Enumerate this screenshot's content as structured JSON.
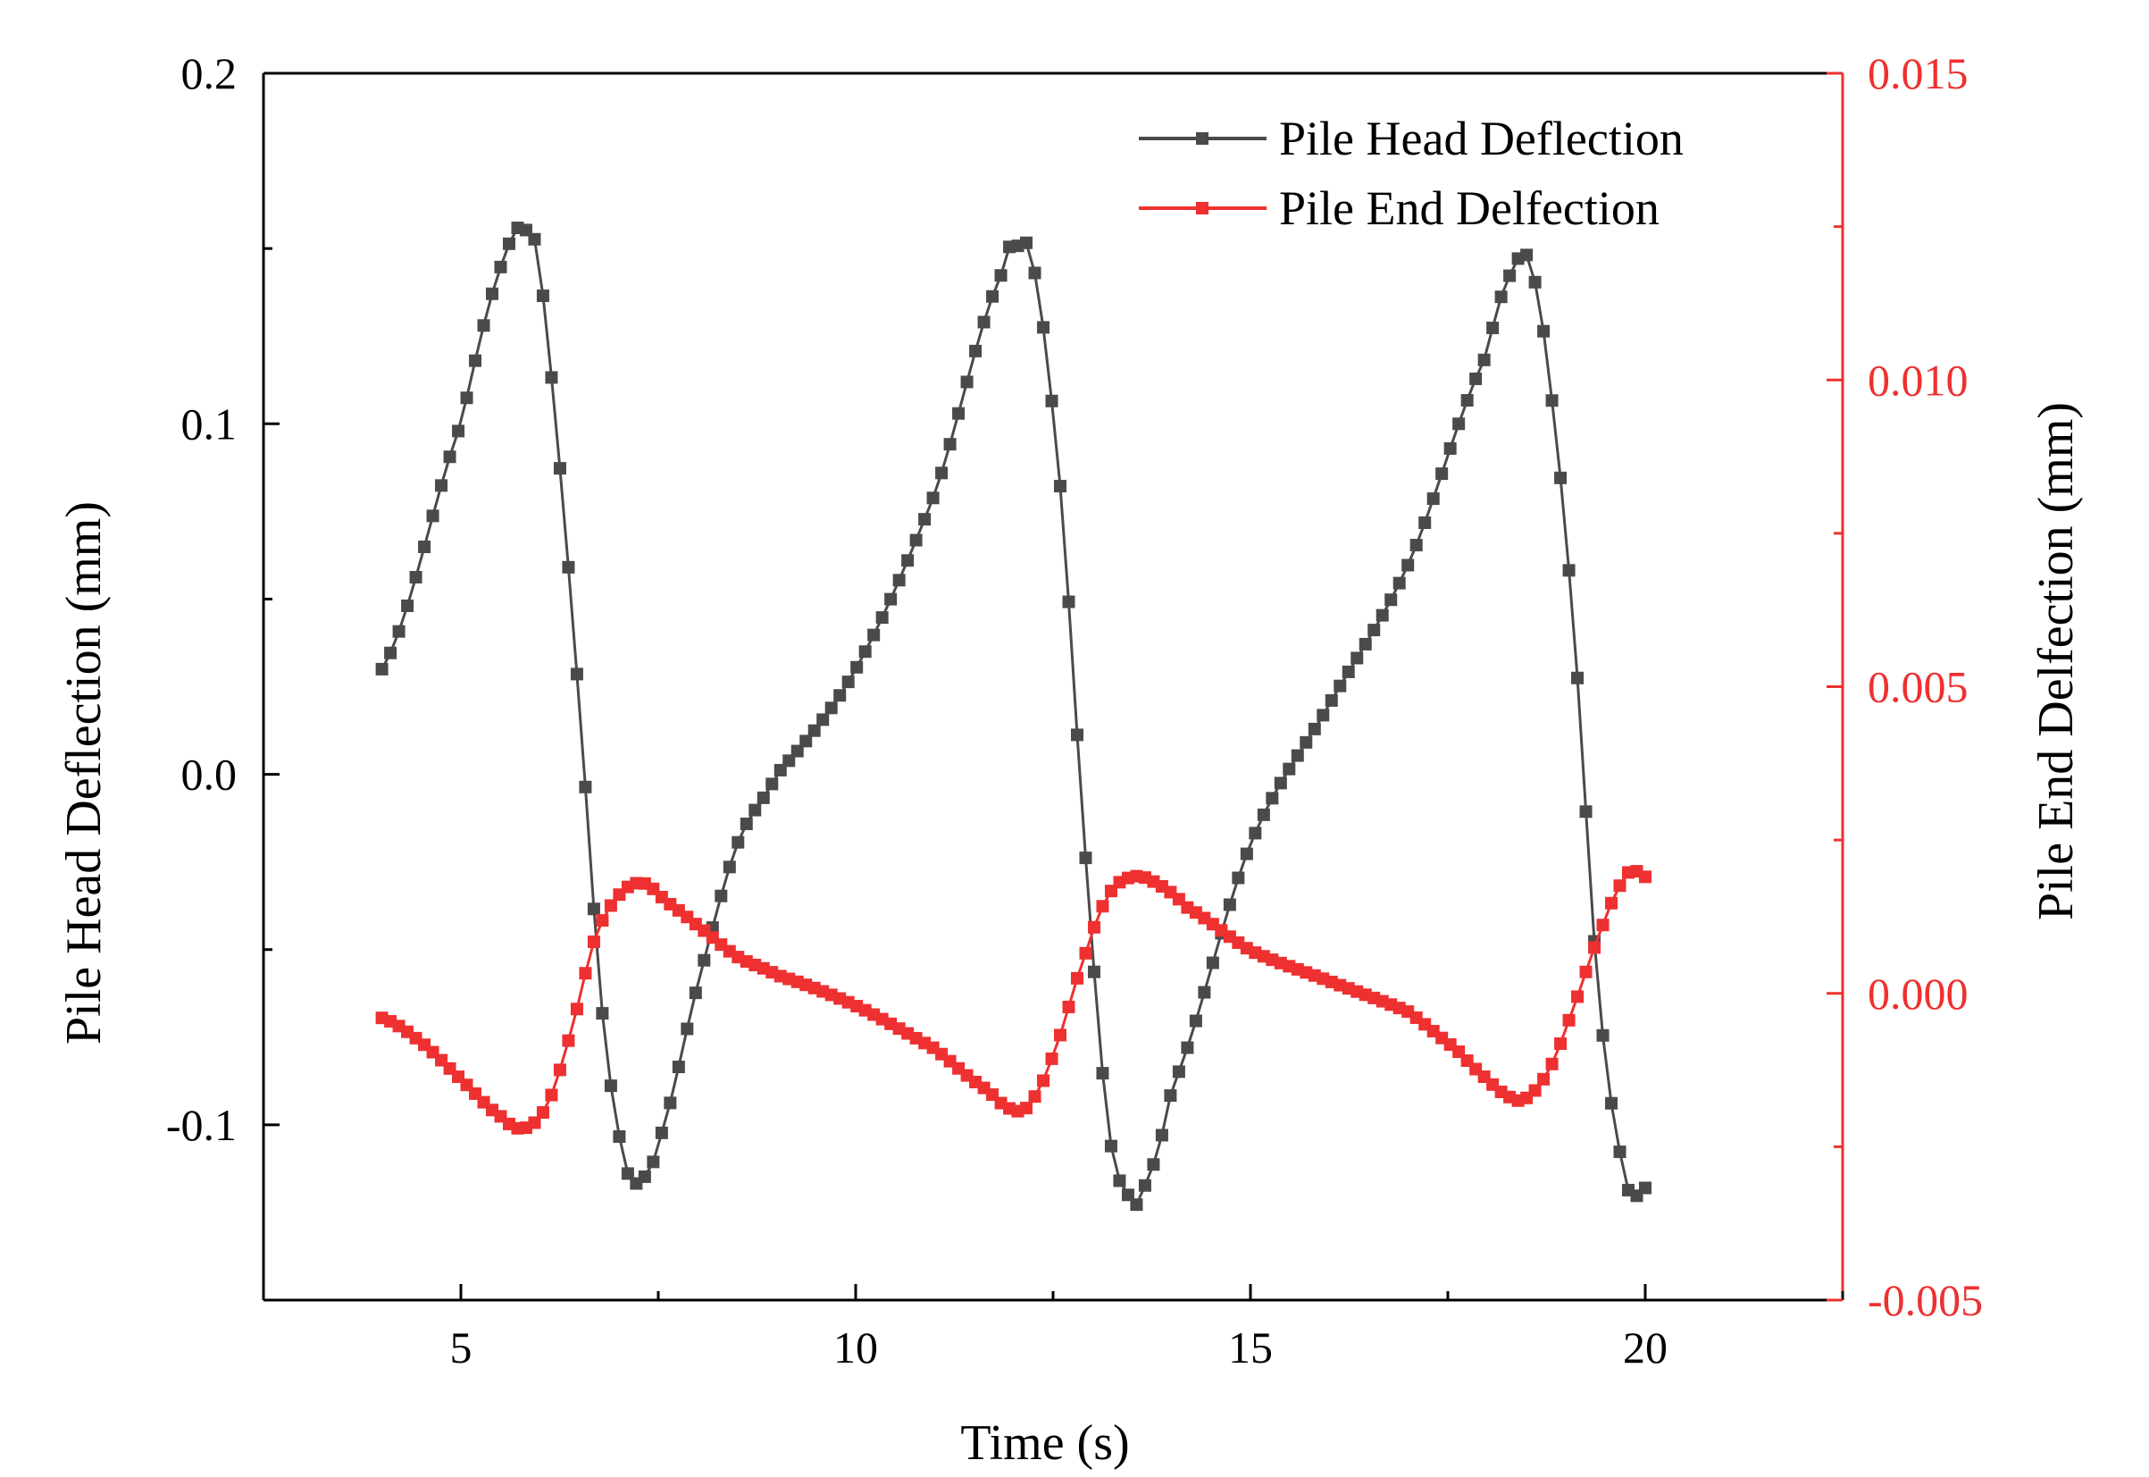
{
  "chart_data": {
    "type": "line",
    "xlabel": "Time (s)",
    "ylabel": "Pile Head Deflection (mm)",
    "y2label": "Pile End Delfection (mm)",
    "xlim": [
      2.5,
      22.5
    ],
    "ylim": [
      -0.15,
      0.2
    ],
    "y2lim": [
      -0.005,
      0.015
    ],
    "xticks": [
      5,
      10,
      15,
      20
    ],
    "xtick_labels": [
      "5",
      "10",
      "15",
      "20"
    ],
    "yticks": [
      -0.1,
      0.0,
      0.1,
      0.2
    ],
    "ytick_labels": [
      "-0.1",
      "0.0",
      "0.1",
      "0.2"
    ],
    "y2ticks": [
      -0.005,
      0.0,
      0.005,
      0.01,
      0.015
    ],
    "y2tick_labels": [
      "-0.005",
      "0.000",
      "0.005",
      "0.010",
      "0.015"
    ],
    "legend_position": "top-right",
    "colors": {
      "head": "#4a4a4a",
      "end": "#ee3030",
      "axis_right": "#ee3030"
    },
    "series": [
      {
        "name": "Pile Head Deflection",
        "axis": "left",
        "marker": "square",
        "keypoints": [
          [
            4.0,
            0.03
          ],
          [
            5.0,
            0.1
          ],
          [
            5.6,
            0.15
          ],
          [
            5.8,
            0.155
          ],
          [
            5.95,
            0.15
          ],
          [
            6.2,
            0.1
          ],
          [
            6.5,
            0.02
          ],
          [
            6.8,
            -0.07
          ],
          [
            7.1,
            -0.112
          ],
          [
            7.25,
            -0.116
          ],
          [
            7.5,
            -0.105
          ],
          [
            8.0,
            -0.06
          ],
          [
            8.5,
            -0.02
          ],
          [
            9.0,
            0.0
          ],
          [
            10.0,
            0.03
          ],
          [
            11.0,
            0.08
          ],
          [
            11.9,
            0.145
          ],
          [
            12.1,
            0.15
          ],
          [
            12.25,
            0.145
          ],
          [
            12.6,
            0.08
          ],
          [
            12.9,
            -0.02
          ],
          [
            13.2,
            -0.1
          ],
          [
            13.45,
            -0.12
          ],
          [
            13.6,
            -0.12
          ],
          [
            14.0,
            -0.09
          ],
          [
            15.0,
            -0.02
          ],
          [
            16.0,
            0.02
          ],
          [
            17.0,
            0.06
          ],
          [
            18.0,
            0.12
          ],
          [
            18.35,
            0.145
          ],
          [
            18.55,
            0.145
          ],
          [
            18.8,
            0.11
          ],
          [
            19.1,
            0.04
          ],
          [
            19.4,
            -0.06
          ],
          [
            19.7,
            -0.11
          ],
          [
            19.85,
            -0.12
          ],
          [
            20.0,
            -0.118
          ]
        ]
      },
      {
        "name": "Pile End Delfection",
        "axis": "right",
        "marker": "square",
        "keypoints": [
          [
            4.0,
            -0.0004
          ],
          [
            4.5,
            -0.0008
          ],
          [
            5.0,
            -0.0014
          ],
          [
            5.5,
            -0.002
          ],
          [
            5.8,
            -0.0022
          ],
          [
            6.1,
            -0.0018
          ],
          [
            6.4,
            -0.0006
          ],
          [
            6.7,
            0.0009
          ],
          [
            7.0,
            0.0016
          ],
          [
            7.3,
            0.0018
          ],
          [
            7.6,
            0.0015
          ],
          [
            8.0,
            0.0011
          ],
          [
            8.5,
            0.0006
          ],
          [
            9.0,
            0.0003
          ],
          [
            10.0,
            -0.0002
          ],
          [
            11.0,
            -0.0009
          ],
          [
            11.7,
            -0.0016
          ],
          [
            12.0,
            -0.0019
          ],
          [
            12.2,
            -0.0018
          ],
          [
            12.5,
            -0.001
          ],
          [
            12.9,
            0.0006
          ],
          [
            13.2,
            0.0016
          ],
          [
            13.5,
            0.0019
          ],
          [
            13.8,
            0.0018
          ],
          [
            14.2,
            0.0014
          ],
          [
            15.0,
            0.0007
          ],
          [
            16.0,
            0.0002
          ],
          [
            17.0,
            -0.0003
          ],
          [
            17.6,
            -0.0009
          ],
          [
            18.0,
            -0.0014
          ],
          [
            18.3,
            -0.0017
          ],
          [
            18.5,
            -0.0017
          ],
          [
            18.8,
            -0.0012
          ],
          [
            19.1,
            -0.0002
          ],
          [
            19.4,
            0.0009
          ],
          [
            19.7,
            0.0018
          ],
          [
            19.85,
            0.002
          ],
          [
            20.0,
            0.0019
          ]
        ]
      }
    ]
  }
}
